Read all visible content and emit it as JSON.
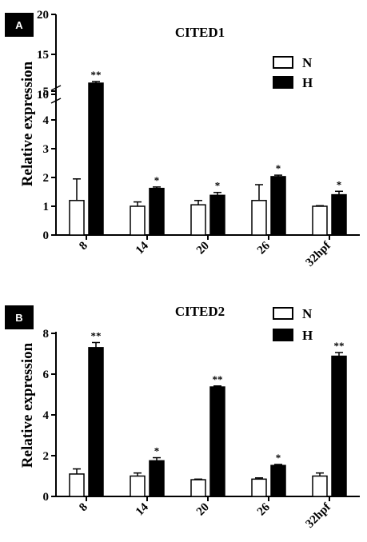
{
  "chart_data": [
    {
      "panel_label": "A",
      "type": "bar",
      "title": "CITED1",
      "ylabel": "Relative expression",
      "categories": [
        "8",
        "14",
        "20",
        "26",
        "32hpf"
      ],
      "series": [
        {
          "name": "N",
          "values": [
            1.2,
            1.0,
            1.05,
            1.2,
            1.0
          ],
          "errors": [
            0.75,
            0.15,
            0.15,
            0.55,
            0.02
          ],
          "color": "#ffffff"
        },
        {
          "name": "H",
          "values": [
            11.4,
            1.62,
            1.38,
            2.03,
            1.4
          ],
          "errors": [
            0.2,
            0.05,
            0.1,
            0.05,
            0.12
          ],
          "color": "#000000"
        }
      ],
      "significance": [
        "**",
        "*",
        "*",
        "*",
        "*"
      ],
      "ylim": [
        0,
        20
      ],
      "axis_break": [
        5,
        9
      ],
      "yticks": [
        "0",
        "1",
        "2",
        "3",
        "4",
        "5",
        "10",
        "15",
        "20"
      ],
      "legend_position": "top-right"
    },
    {
      "panel_label": "B",
      "type": "bar",
      "title": "CITED2",
      "ylabel": "Relative expression",
      "categories": [
        "8",
        "14",
        "20",
        "26",
        "32hpf"
      ],
      "series": [
        {
          "name": "N",
          "values": [
            1.1,
            1.0,
            0.82,
            0.85,
            1.0
          ],
          "errors": [
            0.25,
            0.15,
            0.03,
            0.06,
            0.15
          ],
          "color": "#ffffff"
        },
        {
          "name": "H",
          "values": [
            7.3,
            1.75,
            5.37,
            1.52,
            6.88
          ],
          "errors": [
            0.25,
            0.15,
            0.05,
            0.05,
            0.18
          ],
          "color": "#000000"
        }
      ],
      "significance": [
        "**",
        "*",
        "**",
        "*",
        "**"
      ],
      "ylim": [
        0,
        8
      ],
      "yticks": [
        "0",
        "2",
        "4",
        "6",
        "8"
      ],
      "legend_position": "top-right"
    }
  ]
}
